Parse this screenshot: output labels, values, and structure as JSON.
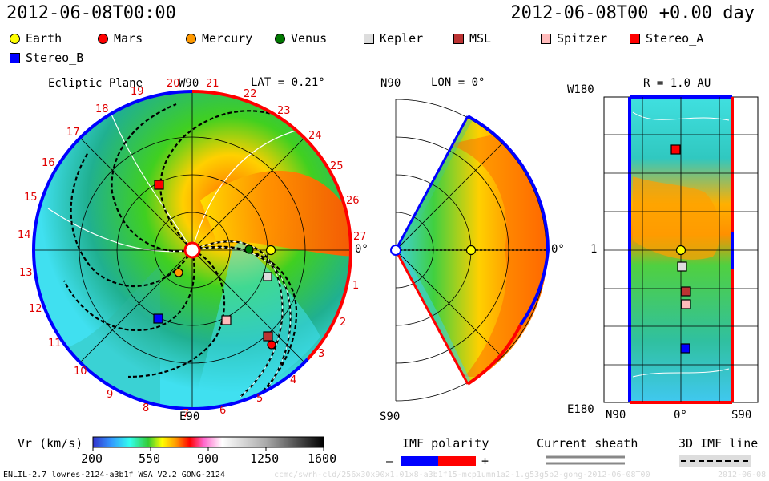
{
  "header": {
    "timestamp": "2012-06-08T00:00",
    "elapsed": "2012-06-08T00 +0.00 day"
  },
  "legend": [
    {
      "name": "Earth",
      "color": "#ffff00",
      "shape": "circle"
    },
    {
      "name": "Mars",
      "color": "#ff0000",
      "shape": "circle"
    },
    {
      "name": "Mercury",
      "color": "#ff9900",
      "shape": "circle"
    },
    {
      "name": "Venus",
      "color": "#007700",
      "shape": "circle"
    },
    {
      "name": "Kepler",
      "color": "#dddddd",
      "shape": "square"
    },
    {
      "name": "MSL",
      "color": "#bb3333",
      "shape": "square"
    },
    {
      "name": "Spitzer",
      "color": "#ffbbbb",
      "shape": "square"
    },
    {
      "name": "Stereo_A",
      "color": "#ff0000",
      "shape": "square"
    },
    {
      "name": "Stereo_B",
      "color": "#0000ff",
      "shape": "square"
    }
  ],
  "ecliptic_panel": {
    "title": "Ecliptic Plane",
    "top_label": "W90",
    "bottom_label": "E90",
    "right_label": "0°",
    "lat_label": "LAT = 0.21°",
    "rotation_labels": [
      "20",
      "21",
      "22",
      "23",
      "24",
      "25",
      "26",
      "27",
      "1",
      "2",
      "3",
      "4",
      "5",
      "6",
      "7",
      "8",
      "9",
      "10",
      "11",
      "12",
      "13",
      "14",
      "15",
      "16",
      "17",
      "18",
      "19"
    ]
  },
  "meridional_panel": {
    "top_left": "N90",
    "lon_label": "LON = 0°",
    "bottom_left": "S90",
    "right_label": "0°"
  },
  "radial_panel": {
    "r_label": "R = 1.0 AU",
    "top_left": "W180",
    "bottom_left": "E180",
    "mid_left": "1",
    "bottom_axis": [
      "N90",
      "0°",
      "S90"
    ]
  },
  "colorbar": {
    "label": "Vr (km/s)",
    "ticks": [
      "200",
      "550",
      "900",
      "1250",
      "1600"
    ]
  },
  "imf_polarity": {
    "label": "IMF polarity",
    "minus": "–",
    "plus": "+",
    "neg_color": "#0000ff",
    "pos_color": "#ff0000"
  },
  "current_sheath": {
    "label": "Current sheath"
  },
  "imf_line": {
    "label": "3D IMF line"
  },
  "footer": {
    "model": "ENLIL-2.7 lowres-2124-a3b1f WSA_V2.2 GONG-2124",
    "faint_run": "ccmc/swrh-cld/256x30x90x1.01x8-a3b1f15-mcp1umn1a2-1.g53g5b2-gong-2012-06-08T00",
    "faint_date": "2012-06-08"
  }
}
